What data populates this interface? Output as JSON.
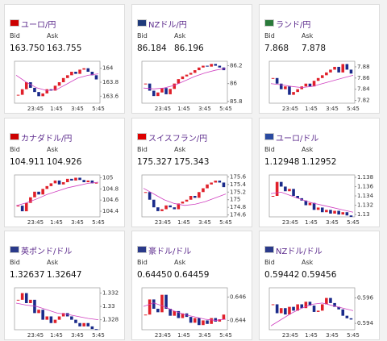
{
  "labels": {
    "bid": "Bid",
    "ask": "Ask"
  },
  "xticks": [
    "23:45",
    "1:45",
    "3:45",
    "5:45"
  ],
  "cards": [
    {
      "title": "ユーロ/円",
      "bid": "163.750",
      "ask": "163.755",
      "chart": {
        "ylim": [
          163.5,
          164.1
        ],
        "yticks": [
          164,
          163.8,
          163.6
        ],
        "closes": [
          163.62,
          163.7,
          163.8,
          163.72,
          163.66,
          163.6,
          163.64,
          163.7,
          163.68,
          163.75,
          163.8,
          163.86,
          163.9,
          163.95,
          163.92,
          163.98,
          164.0,
          163.95,
          163.9,
          163.84
        ],
        "ma": [
          163.9,
          163.8,
          163.72,
          163.68,
          163.7,
          163.78,
          163.86,
          163.9,
          163.92
        ]
      }
    },
    {
      "title": "NZドル/円",
      "bid": "86.184",
      "ask": "86.196",
      "chart": {
        "ylim": [
          85.78,
          86.25
        ],
        "yticks": [
          86.2,
          86,
          85.8
        ],
        "closes": [
          86.0,
          85.92,
          85.86,
          85.9,
          85.95,
          85.88,
          85.94,
          86.0,
          86.05,
          86.08,
          86.1,
          86.12,
          86.15,
          86.18,
          86.2,
          86.19,
          86.22,
          86.2,
          86.18,
          86.15
        ],
        "ma": [
          85.95,
          85.94,
          85.95,
          85.98,
          86.03,
          86.08,
          86.12,
          86.15,
          86.17
        ]
      }
    },
    {
      "title": "ランド/円",
      "bid": "7.868",
      "ask": "7.878",
      "chart": {
        "ylim": [
          7.815,
          7.89
        ],
        "yticks": [
          7.88,
          7.86,
          7.84,
          7.82
        ],
        "closes": [
          7.86,
          7.85,
          7.84,
          7.845,
          7.83,
          7.835,
          7.84,
          7.845,
          7.85,
          7.845,
          7.855,
          7.86,
          7.865,
          7.87,
          7.875,
          7.88,
          7.87,
          7.885,
          7.875,
          7.868
        ],
        "ma": [
          7.85,
          7.848,
          7.845,
          7.843,
          7.845,
          7.85,
          7.855,
          7.86,
          7.865
        ]
      }
    },
    {
      "title": "カナダドル/円",
      "bid": "104.911",
      "ask": "104.926",
      "chart": {
        "ylim": [
          104.3,
          105.05
        ],
        "yticks": [
          105,
          104.8,
          104.6,
          104.4
        ],
        "closes": [
          104.5,
          104.4,
          104.55,
          104.65,
          104.75,
          104.7,
          104.8,
          104.85,
          104.9,
          104.95,
          104.88,
          104.92,
          104.98,
          104.95,
          105.0,
          104.96,
          104.92,
          104.95,
          104.9,
          104.91
        ],
        "ma": [
          104.5,
          104.55,
          104.62,
          104.7,
          104.76,
          104.82,
          104.86,
          104.9,
          104.92
        ]
      }
    },
    {
      "title": "スイスフラン/円",
      "bid": "175.327",
      "ask": "175.343",
      "chart": {
        "ylim": [
          174.55,
          175.65
        ],
        "yticks": [
          175.6,
          175.4,
          175.2,
          175,
          174.8,
          174.6
        ],
        "closes": [
          175.2,
          175.0,
          174.8,
          174.7,
          174.75,
          174.85,
          174.8,
          174.75,
          174.9,
          174.95,
          175.0,
          175.1,
          175.05,
          175.2,
          175.3,
          175.4,
          175.45,
          175.5,
          175.45,
          175.33
        ],
        "ma": [
          175.3,
          175.15,
          175.0,
          174.9,
          174.85,
          174.88,
          174.95,
          175.05,
          175.15
        ]
      }
    },
    {
      "title": "ユーロ/ドル",
      "bid": "1.12948",
      "ask": "1.12952",
      "chart": {
        "ylim": [
          1.1295,
          1.1385
        ],
        "yticks": [
          1.138,
          1.136,
          1.134,
          1.132,
          1.13
        ],
        "closes": [
          1.134,
          1.137,
          1.136,
          1.135,
          1.1355,
          1.134,
          1.1335,
          1.133,
          1.132,
          1.1325,
          1.131,
          1.1315,
          1.1305,
          1.131,
          1.1302,
          1.1308,
          1.13,
          1.1305,
          1.1298,
          1.1295
        ],
        "ma": [
          1.1345,
          1.1348,
          1.134,
          1.1332,
          1.1325,
          1.132,
          1.1315,
          1.131,
          1.1305
        ]
      }
    },
    {
      "title": "英ポンド/ドル",
      "bid": "1.32637",
      "ask": "1.32647",
      "chart": {
        "ylim": [
          1.3265,
          1.3328
        ],
        "yticks": [
          1.332,
          1.33,
          1.328
        ],
        "closes": [
          1.331,
          1.332,
          1.3305,
          1.331,
          1.329,
          1.3295,
          1.328,
          1.3285,
          1.3275,
          1.328,
          1.3285,
          1.329,
          1.3285,
          1.328,
          1.3275,
          1.327,
          1.3275,
          1.327,
          1.3266,
          1.3265
        ],
        "ma": [
          1.3305,
          1.3302,
          1.33,
          1.3295,
          1.329,
          1.3288,
          1.3285,
          1.3282,
          1.328
        ]
      }
    },
    {
      "title": "豪ドル/ドル",
      "bid": "0.64450",
      "ask": "0.64459",
      "chart": {
        "ylim": [
          0.6432,
          0.6468
        ],
        "yticks": [
          0.646,
          0.644
        ],
        "closes": [
          0.6445,
          0.6458,
          0.645,
          0.6447,
          0.6462,
          0.645,
          0.6444,
          0.6448,
          0.6442,
          0.6446,
          0.6443,
          0.6438,
          0.6442,
          0.6436,
          0.644,
          0.6437,
          0.6442,
          0.6439,
          0.6441,
          0.6445
        ],
        "ma": [
          0.6452,
          0.6455,
          0.6452,
          0.6448,
          0.6445,
          0.6443,
          0.6441,
          0.644,
          0.6441
        ]
      }
    },
    {
      "title": "NZドル/ドル",
      "bid": "0.59442",
      "ask": "0.59456",
      "chart": {
        "ylim": [
          0.5935,
          0.5968
        ],
        "yticks": [
          0.596,
          0.594
        ],
        "closes": [
          0.5955,
          0.5948,
          0.5952,
          0.5947,
          0.5953,
          0.595,
          0.5955,
          0.5952,
          0.5957,
          0.5954,
          0.5949,
          0.595,
          0.5955,
          0.596,
          0.5956,
          0.5953,
          0.5951,
          0.5946,
          0.5944,
          0.5943
        ],
        "ma": [
          0.5938,
          0.5943,
          0.5948,
          0.5952,
          0.5955,
          0.5956,
          0.5954,
          0.5952,
          0.595
        ]
      }
    }
  ]
}
